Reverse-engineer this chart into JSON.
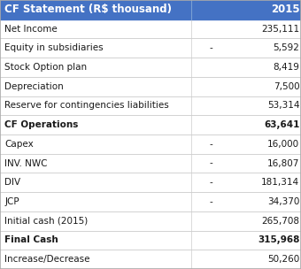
{
  "header": [
    "CF Statement (R$ thousand)",
    "2015"
  ],
  "header_bg": "#4472c4",
  "header_text_color": "#ffffff",
  "rows": [
    {
      "label": "Net Income",
      "sign": "",
      "value": "235,111",
      "bold": false
    },
    {
      "label": "Equity in subsidiaries",
      "sign": "-",
      "value": "5,592",
      "bold": false
    },
    {
      "label": "Stock Option plan",
      "sign": "",
      "value": "8,419",
      "bold": false
    },
    {
      "label": "Depreciation",
      "sign": "",
      "value": "7,500",
      "bold": false
    },
    {
      "label": "Reserve for contingencies liabilities",
      "sign": "",
      "value": "53,314",
      "bold": false
    },
    {
      "label": "CF Operations",
      "sign": "",
      "value": "63,641",
      "bold": true
    },
    {
      "label": "Capex",
      "sign": "-",
      "value": "16,000",
      "bold": false
    },
    {
      "label": "INV. NWC",
      "sign": "-",
      "value": "16,807",
      "bold": false
    },
    {
      "label": "DIV",
      "sign": "-",
      "value": "181,314",
      "bold": false
    },
    {
      "label": "JCP",
      "sign": "-",
      "value": "34,370",
      "bold": false
    },
    {
      "label": "Initial cash (2015)",
      "sign": "",
      "value": "265,708",
      "bold": false
    },
    {
      "label": "Final Cash",
      "sign": "",
      "value": "315,968",
      "bold": true
    },
    {
      "label": "Increase/Decrease",
      "sign": "",
      "value": "50,260",
      "bold": false
    }
  ],
  "header_bg_color": "#4472c4",
  "header_fg_color": "#ffffff",
  "row_bg": "#ffffff",
  "text_color": "#1a1a1a",
  "figsize": [
    3.4,
    3.04
  ],
  "dpi": 100,
  "fontsize": 7.5,
  "header_fontsize": 8.5
}
